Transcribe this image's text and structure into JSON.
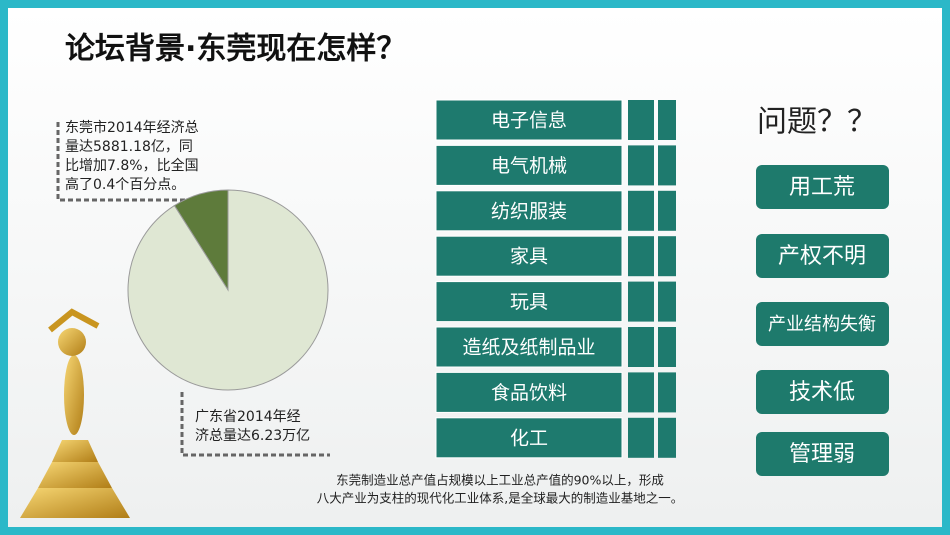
{
  "title": "论坛背景·东莞现在怎样？",
  "chart_data": {
    "type": "pie",
    "values": [
      9,
      91
    ],
    "colors": [
      "#5e7b3b",
      "#dfe7d3"
    ],
    "annotations": [
      {
        "lines": [
          "东莞市2014年经济总",
          "量达5881.18亿，同",
          "比增加7.8%，比全国",
          "高了0.4个百分点。"
        ]
      },
      {
        "lines": [
          "广东省2014年经",
          "济总量达6.23万亿"
        ]
      }
    ]
  },
  "industries": [
    "电子信息",
    "电气机械",
    "纺织服装",
    "家具",
    "玩具",
    "造纸及纸制品业",
    "食品饮料",
    "化工"
  ],
  "problems_title": "问题？？",
  "problems": [
    "用工荒",
    "产权不明",
    "产业结构失衡",
    "技术低",
    "管理弱"
  ],
  "footer": [
    "东莞制造业总产值占规模以上工业总产值的90%以上，形成",
    "八大产业为支柱的现代化工业体系,是全球最大的制造业基地之一。"
  ]
}
